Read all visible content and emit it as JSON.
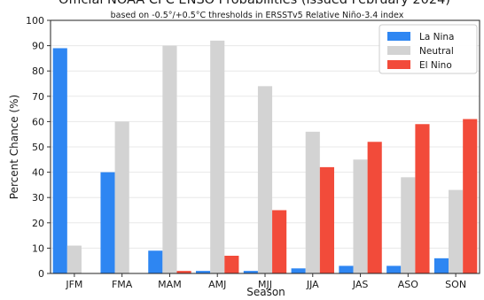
{
  "chart_data": {
    "type": "bar",
    "title": "Official NOAA CPC ENSO Probabilities (issued February 2024)",
    "subtitle": "based on -0.5°/+0.5°C thresholds in ERSSTv5 Relative Niño-3.4 index",
    "xlabel": "Season",
    "ylabel": "Percent Chance (%)",
    "ylim": [
      0,
      100
    ],
    "yticks": [
      0,
      10,
      20,
      30,
      40,
      50,
      60,
      70,
      80,
      90,
      100
    ],
    "grid": true,
    "legend_position": "top-right",
    "categories": [
      "JFM",
      "FMA",
      "MAM",
      "AMJ",
      "MJJ",
      "JJA",
      "JAS",
      "ASO",
      "SON"
    ],
    "series": [
      {
        "name": "La Nina",
        "color": "#2e86f2",
        "values": [
          89,
          40,
          9,
          1,
          1,
          2,
          3,
          3,
          6
        ]
      },
      {
        "name": "Neutral",
        "color": "#d3d3d3",
        "values": [
          11,
          60,
          90,
          92,
          74,
          56,
          45,
          38,
          33
        ]
      },
      {
        "name": "El Nino",
        "color": "#f24b3a",
        "values": [
          0,
          0,
          1,
          7,
          25,
          42,
          52,
          59,
          61
        ]
      }
    ]
  }
}
